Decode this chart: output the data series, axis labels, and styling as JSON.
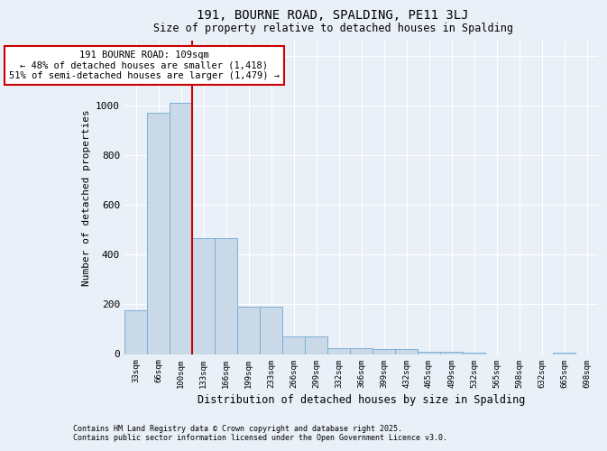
{
  "title1": "191, BOURNE ROAD, SPALDING, PE11 3LJ",
  "title2": "Size of property relative to detached houses in Spalding",
  "xlabel": "Distribution of detached houses by size in Spalding",
  "ylabel": "Number of detached properties",
  "categories": [
    "33sqm",
    "66sqm",
    "100sqm",
    "133sqm",
    "166sqm",
    "199sqm",
    "233sqm",
    "266sqm",
    "299sqm",
    "332sqm",
    "366sqm",
    "399sqm",
    "432sqm",
    "465sqm",
    "499sqm",
    "532sqm",
    "565sqm",
    "598sqm",
    "632sqm",
    "665sqm",
    "698sqm"
  ],
  "values": [
    175,
    970,
    1010,
    465,
    465,
    190,
    190,
    70,
    70,
    25,
    25,
    20,
    20,
    10,
    10,
    5,
    0,
    0,
    0,
    5,
    0
  ],
  "bar_color": "#c9d9e8",
  "bar_edge_color": "#7bafd4",
  "vline_color": "#cc0000",
  "annotation_text": "191 BOURNE ROAD: 109sqm\n← 48% of detached houses are smaller (1,418)\n51% of semi-detached houses are larger (1,479) →",
  "annotation_box_color": "#ffffff",
  "annotation_box_edge": "#cc0000",
  "ylim": [
    0,
    1260
  ],
  "yticks": [
    0,
    200,
    400,
    600,
    800,
    1000,
    1200
  ],
  "background_color": "#eaf0f8",
  "grid_color": "#ffffff",
  "footer1": "Contains HM Land Registry data © Crown copyright and database right 2025.",
  "footer2": "Contains public sector information licensed under the Open Government Licence v3.0."
}
